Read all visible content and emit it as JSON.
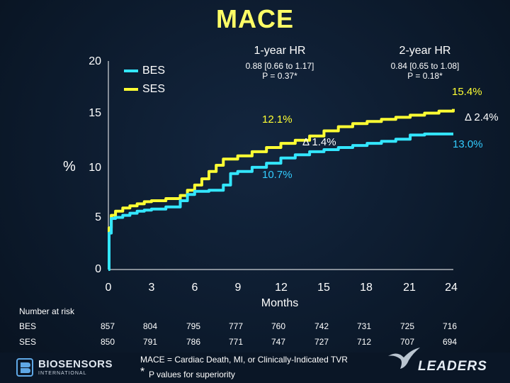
{
  "title": "MACE",
  "hr": [
    {
      "heading": "1-year HR",
      "ci": "0.88 [0.66 to 1.17]",
      "p": "P = 0.37*"
    },
    {
      "heading": "2-year HR",
      "ci": "0.84 [0.65 to 1.08]",
      "p": "P = 0.18*"
    }
  ],
  "legend": [
    {
      "label": "BES",
      "color": "#33e6ff"
    },
    {
      "label": "SES",
      "color": "#ffff33"
    }
  ],
  "annotations": {
    "ses_1yr": "12.1%",
    "bes_1yr": "10.7%",
    "delta_1yr": "Δ 1.4%",
    "ses_2yr": "15.4%",
    "bes_2yr": "13.0%",
    "delta_2yr": "Δ 2.4%"
  },
  "risk_table": {
    "title": "Number at risk",
    "rows": [
      {
        "label": "BES",
        "values": [
          "857",
          "804",
          "795",
          "777",
          "760",
          "742",
          "731",
          "725",
          "716"
        ]
      },
      {
        "label": "SES",
        "values": [
          "850",
          "791",
          "786",
          "771",
          "747",
          "727",
          "712",
          "707",
          "694"
        ]
      }
    ]
  },
  "footnote": {
    "definition": "MACE = Cardiac Death, MI, or Clinically-Indicated TVR",
    "asterisk": "*",
    "text": "P values for superiority"
  },
  "logos": {
    "left_main": "BIOSENSORS",
    "left_sub": "INTERNATIONAL",
    "right": "LEADERS"
  },
  "colors": {
    "accent": "#ffff66",
    "bes": "#33e6ff",
    "ses": "#ffff33",
    "ses_label": "#ffff33",
    "bes_label": "#33ccff"
  },
  "chart_data": {
    "type": "line",
    "title": "MACE",
    "xlabel": "Months",
    "ylabel": "%",
    "xlim": [
      0,
      24
    ],
    "ylim": [
      0,
      20
    ],
    "xticks": [
      0,
      3,
      6,
      9,
      12,
      15,
      18,
      21,
      24
    ],
    "yticks": [
      0,
      5,
      10,
      15,
      20
    ],
    "series": [
      {
        "name": "BES",
        "color": "#33e6ff",
        "x": [
          0,
          0.05,
          0.2,
          0.5,
          1,
          1.5,
          2,
          2.5,
          3,
          4,
          5,
          5.5,
          6,
          7,
          8,
          8.5,
          9,
          10,
          11,
          12,
          13,
          14,
          15,
          16,
          17,
          18,
          19,
          20,
          21,
          22,
          23,
          24
        ],
        "y": [
          0,
          3.5,
          4.9,
          5.0,
          5.2,
          5.4,
          5.6,
          5.7,
          5.8,
          6.0,
          6.6,
          7.2,
          7.5,
          7.6,
          8.1,
          9.2,
          9.4,
          9.8,
          10.2,
          10.7,
          11.0,
          11.3,
          11.5,
          11.7,
          11.9,
          12.1,
          12.3,
          12.5,
          12.9,
          13.0,
          13.0,
          13.0
        ]
      },
      {
        "name": "SES",
        "color": "#ffff33",
        "x": [
          0,
          0.05,
          0.2,
          0.5,
          1,
          1.5,
          2,
          2.5,
          3,
          4,
          5,
          5.5,
          6,
          6.5,
          7,
          7.5,
          8,
          9,
          10,
          11,
          12,
          13,
          14,
          15,
          16,
          17,
          18,
          19,
          20,
          21,
          22,
          23,
          24
        ],
        "y": [
          0,
          4.0,
          5.2,
          5.6,
          5.9,
          6.1,
          6.3,
          6.5,
          6.6,
          6.8,
          7.1,
          7.6,
          8.1,
          8.7,
          9.4,
          10.0,
          10.6,
          10.9,
          11.3,
          11.7,
          12.1,
          12.4,
          12.8,
          13.3,
          13.7,
          14.0,
          14.2,
          14.4,
          14.6,
          14.8,
          15.0,
          15.2,
          15.4
        ]
      }
    ],
    "risk_times": [
      0,
      3,
      6,
      9,
      12,
      15,
      18,
      21,
      24
    ]
  }
}
